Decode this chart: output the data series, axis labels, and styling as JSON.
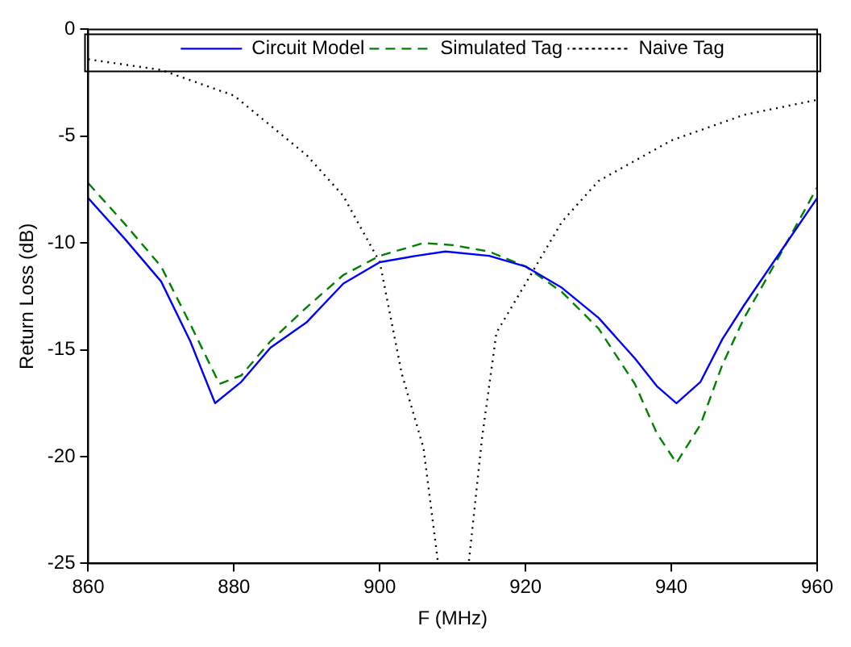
{
  "chart_data": {
    "type": "line",
    "xlabel": "F (MHz)",
    "ylabel": "Return Loss (dB)",
    "xlim": [
      860,
      960
    ],
    "xticks": [
      860,
      880,
      900,
      920,
      940,
      960
    ],
    "ylim": [
      -25,
      0
    ],
    "yticks": [
      -25,
      -20,
      -15,
      -10,
      -5,
      0
    ],
    "grid": false,
    "legend": "top",
    "marker": "none",
    "series": [
      {
        "name": "Circuit Model",
        "color": "#0000ff",
        "line_style": "solid",
        "x": [
          860,
          865,
          870,
          874,
          877.4,
          881,
          885,
          890,
          895,
          900,
          905,
          909,
          915,
          920,
          925,
          930,
          935,
          938,
          940.7,
          944,
          947,
          950,
          955,
          960
        ],
        "values": [
          -7.9,
          -9.8,
          -11.8,
          -14.6,
          -17.5,
          -16.5,
          -14.9,
          -13.7,
          -11.9,
          -10.9,
          -10.6,
          -10.4,
          -10.6,
          -11.1,
          -12.1,
          -13.5,
          -15.4,
          -16.7,
          -17.5,
          -16.5,
          -14.5,
          -12.9,
          -10.4,
          -7.9
        ]
      },
      {
        "name": "Simulated Tag",
        "color": "#008000",
        "line_style": "dashed",
        "x": [
          860,
          865,
          870,
          874,
          878,
          881,
          885,
          890,
          895,
          900,
          906,
          910,
          915,
          920,
          925,
          930,
          935,
          938,
          940.7,
          944,
          947,
          950,
          955,
          960
        ],
        "values": [
          -7.2,
          -9.1,
          -11.1,
          -13.8,
          -16.6,
          -16.2,
          -14.6,
          -13.0,
          -11.5,
          -10.6,
          -10.0,
          -10.1,
          -10.4,
          -11.1,
          -12.3,
          -14.0,
          -16.6,
          -18.9,
          -20.3,
          -18.5,
          -15.7,
          -13.5,
          -10.5,
          -7.4
        ]
      },
      {
        "name": "Naive Tag",
        "color": "#000000",
        "line_style": "dotted",
        "x": [
          860,
          870,
          880,
          890,
          895,
          900,
          903,
          906,
          908,
          912.2,
          914,
          916,
          920,
          925,
          930,
          940,
          950,
          960
        ],
        "values": [
          -1.4,
          -1.9,
          -3.1,
          -5.9,
          -7.8,
          -10.9,
          -16.1,
          -19.6,
          -25,
          -25,
          -19.2,
          -14.2,
          -11.9,
          -9.0,
          -7.1,
          -5.2,
          -4.0,
          -3.3
        ]
      }
    ]
  }
}
